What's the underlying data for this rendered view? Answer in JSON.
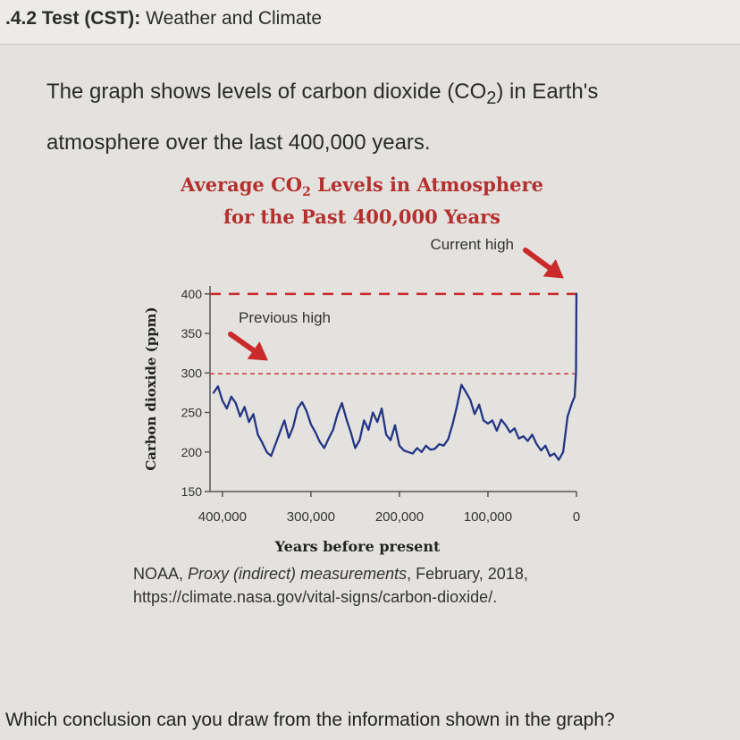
{
  "header": {
    "prefix": ".4.2 Test (CST):",
    "title": "Weather and Climate"
  },
  "question": {
    "intro_before_co2": "The graph shows levels of carbon dioxide (CO",
    "co2_subscript": "2",
    "intro_after_co2": ") in Earth's atmosphere over the last 400,000 years."
  },
  "chart_data": {
    "type": "line",
    "title_part1": "Average CO",
    "title_subscript": "2",
    "title_part2": " Levels in Atmosphere",
    "title_line2": "for the Past 400,000 Years",
    "xlabel": "Years before present",
    "ylabel": "Carbon dioxide (ppm)",
    "x_ticks": [
      "400,000",
      "300,000",
      "200,000",
      "100,000",
      "0"
    ],
    "x_tick_values": [
      400000,
      300000,
      200000,
      100000,
      0
    ],
    "y_ticks": [
      "150",
      "200",
      "250",
      "300",
      "350",
      "400"
    ],
    "y_tick_values": [
      150,
      200,
      250,
      300,
      350,
      400
    ],
    "xlim": [
      414000,
      0
    ],
    "ylim": [
      150,
      410
    ],
    "reference_lines": [
      {
        "label": "Current high",
        "value": 400
      },
      {
        "label": "Previous high",
        "value": 299
      }
    ],
    "annotations": {
      "current_high": "Current high",
      "previous_high": "Previous high"
    },
    "colors": {
      "series": "#233585",
      "annotation": "#c92a2a",
      "title": "#b3302e"
    },
    "series": [
      {
        "x": [
          410000,
          405000,
          400000,
          395000,
          390000,
          385000,
          380000,
          375000,
          370000,
          365000,
          360000,
          355000,
          350000,
          345000,
          340000,
          335000,
          330000,
          325000,
          320000,
          315000,
          310000,
          305000,
          300000,
          295000,
          290000,
          285000,
          280000,
          275000,
          270000,
          265000,
          260000,
          255000,
          250000,
          245000,
          240000,
          235000,
          230000,
          225000,
          220000,
          215000,
          210000,
          205000,
          200000,
          195000,
          190000,
          185000,
          180000,
          175000,
          170000,
          165000,
          160000,
          155000,
          150000,
          145000,
          140000,
          135000,
          130000,
          125000,
          120000,
          115000,
          110000,
          105000,
          100000,
          95000,
          90000,
          85000,
          80000,
          75000,
          70000,
          65000,
          60000,
          55000,
          50000,
          45000,
          40000,
          35000,
          30000,
          25000,
          20000,
          15000,
          10000,
          5000,
          2000,
          500,
          0
        ],
        "y": [
          275,
          283,
          265,
          255,
          270,
          262,
          245,
          257,
          238,
          248,
          222,
          212,
          200,
          195,
          210,
          225,
          240,
          218,
          232,
          255,
          263,
          252,
          235,
          225,
          213,
          205,
          217,
          228,
          248,
          262,
          242,
          225,
          205,
          215,
          240,
          228,
          250,
          238,
          255,
          222,
          215,
          234,
          208,
          202,
          200,
          198,
          205,
          200,
          208,
          203,
          204,
          210,
          208,
          216,
          235,
          258,
          285,
          276,
          266,
          248,
          260,
          240,
          236,
          240,
          227,
          241,
          234,
          225,
          230,
          217,
          220,
          214,
          222,
          210,
          202,
          208,
          195,
          198,
          190,
          200,
          245,
          262,
          270,
          300,
          400
        ]
      }
    ]
  },
  "caption": {
    "source_prefix": "NOAA, ",
    "source_title": "Proxy (indirect) measurements",
    "source_rest": ", February, 2018, https://climate.nasa.gov/vital-signs/carbon-dioxide/."
  },
  "bottom_question": "Which conclusion can you draw from the information shown in the graph?"
}
